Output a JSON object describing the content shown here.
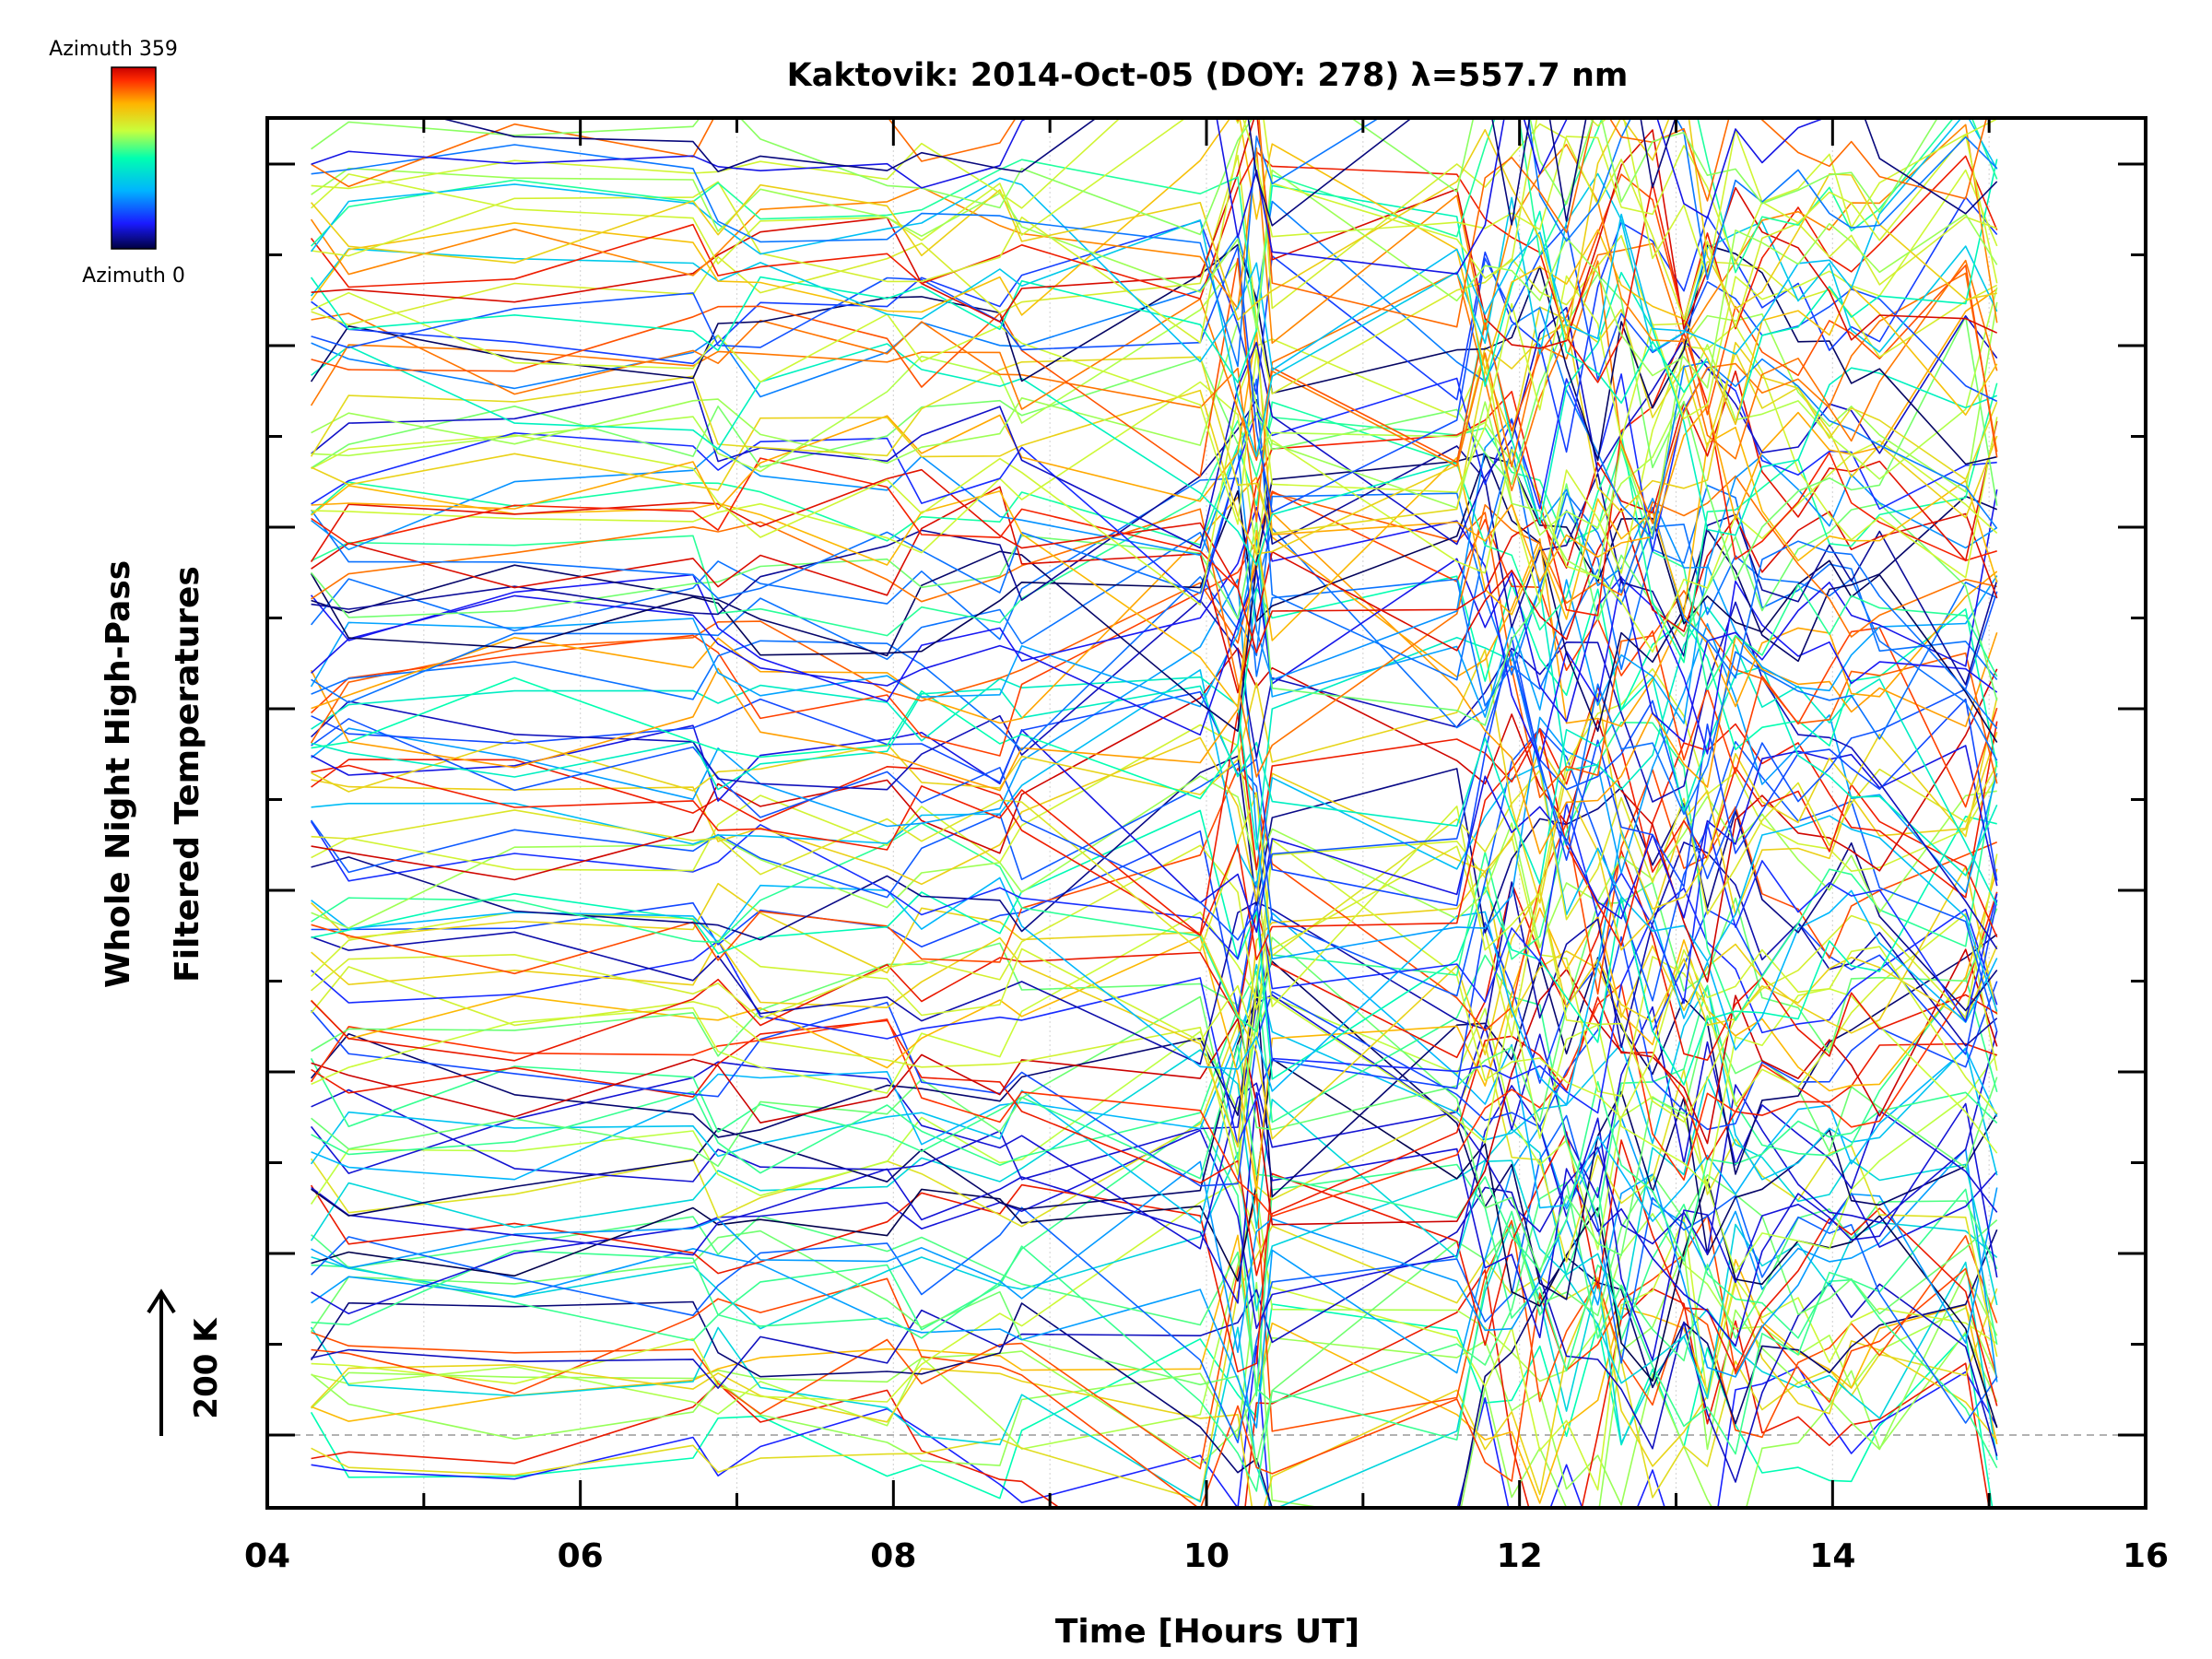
{
  "chart_data": {
    "type": "line",
    "title": "Kaktovik: 2014-Oct-05 (DOY: 278) λ=557.7 nm",
    "xlabel": "Time [Hours UT]",
    "ylabel_line1": "Whole Night High-Pass",
    "ylabel_line2": "Filtered Temperatures",
    "scale_bar_label": "200 K",
    "scale_bar_kelvin": 200,
    "xlim": [
      4,
      16
    ],
    "x_ticks": [
      "04",
      "06",
      "08",
      "10",
      "12",
      "14",
      "16"
    ],
    "x_tick_values": [
      4,
      6,
      8,
      10,
      12,
      14,
      16
    ],
    "colorbar": {
      "max_label": "Azimuth 359",
      "min_label": "Azimuth 0",
      "colors": [
        "#000040",
        "#1a1aff",
        "#00b4ff",
        "#00ffb0",
        "#c8ff3c",
        "#ffb400",
        "#ff2a00",
        "#c80000"
      ]
    },
    "grid": "vertical dotted at every hour",
    "zero_reference_line": "dashed gray",
    "legend_position": "top-left",
    "n_series": 140,
    "seed": 278,
    "time_hours": [
      4.28,
      4.52,
      5.58,
      6.72,
      6.88,
      7.15,
      7.96,
      8.18,
      8.68,
      8.82,
      9.96,
      10.2,
      10.32,
      10.42,
      11.6,
      11.78,
      11.95,
      12.13,
      12.3,
      12.5,
      12.65,
      12.85,
      13.05,
      13.2,
      13.38,
      13.55,
      13.78,
      13.98,
      14.12,
      14.3,
      14.85,
      15.05
    ]
  }
}
